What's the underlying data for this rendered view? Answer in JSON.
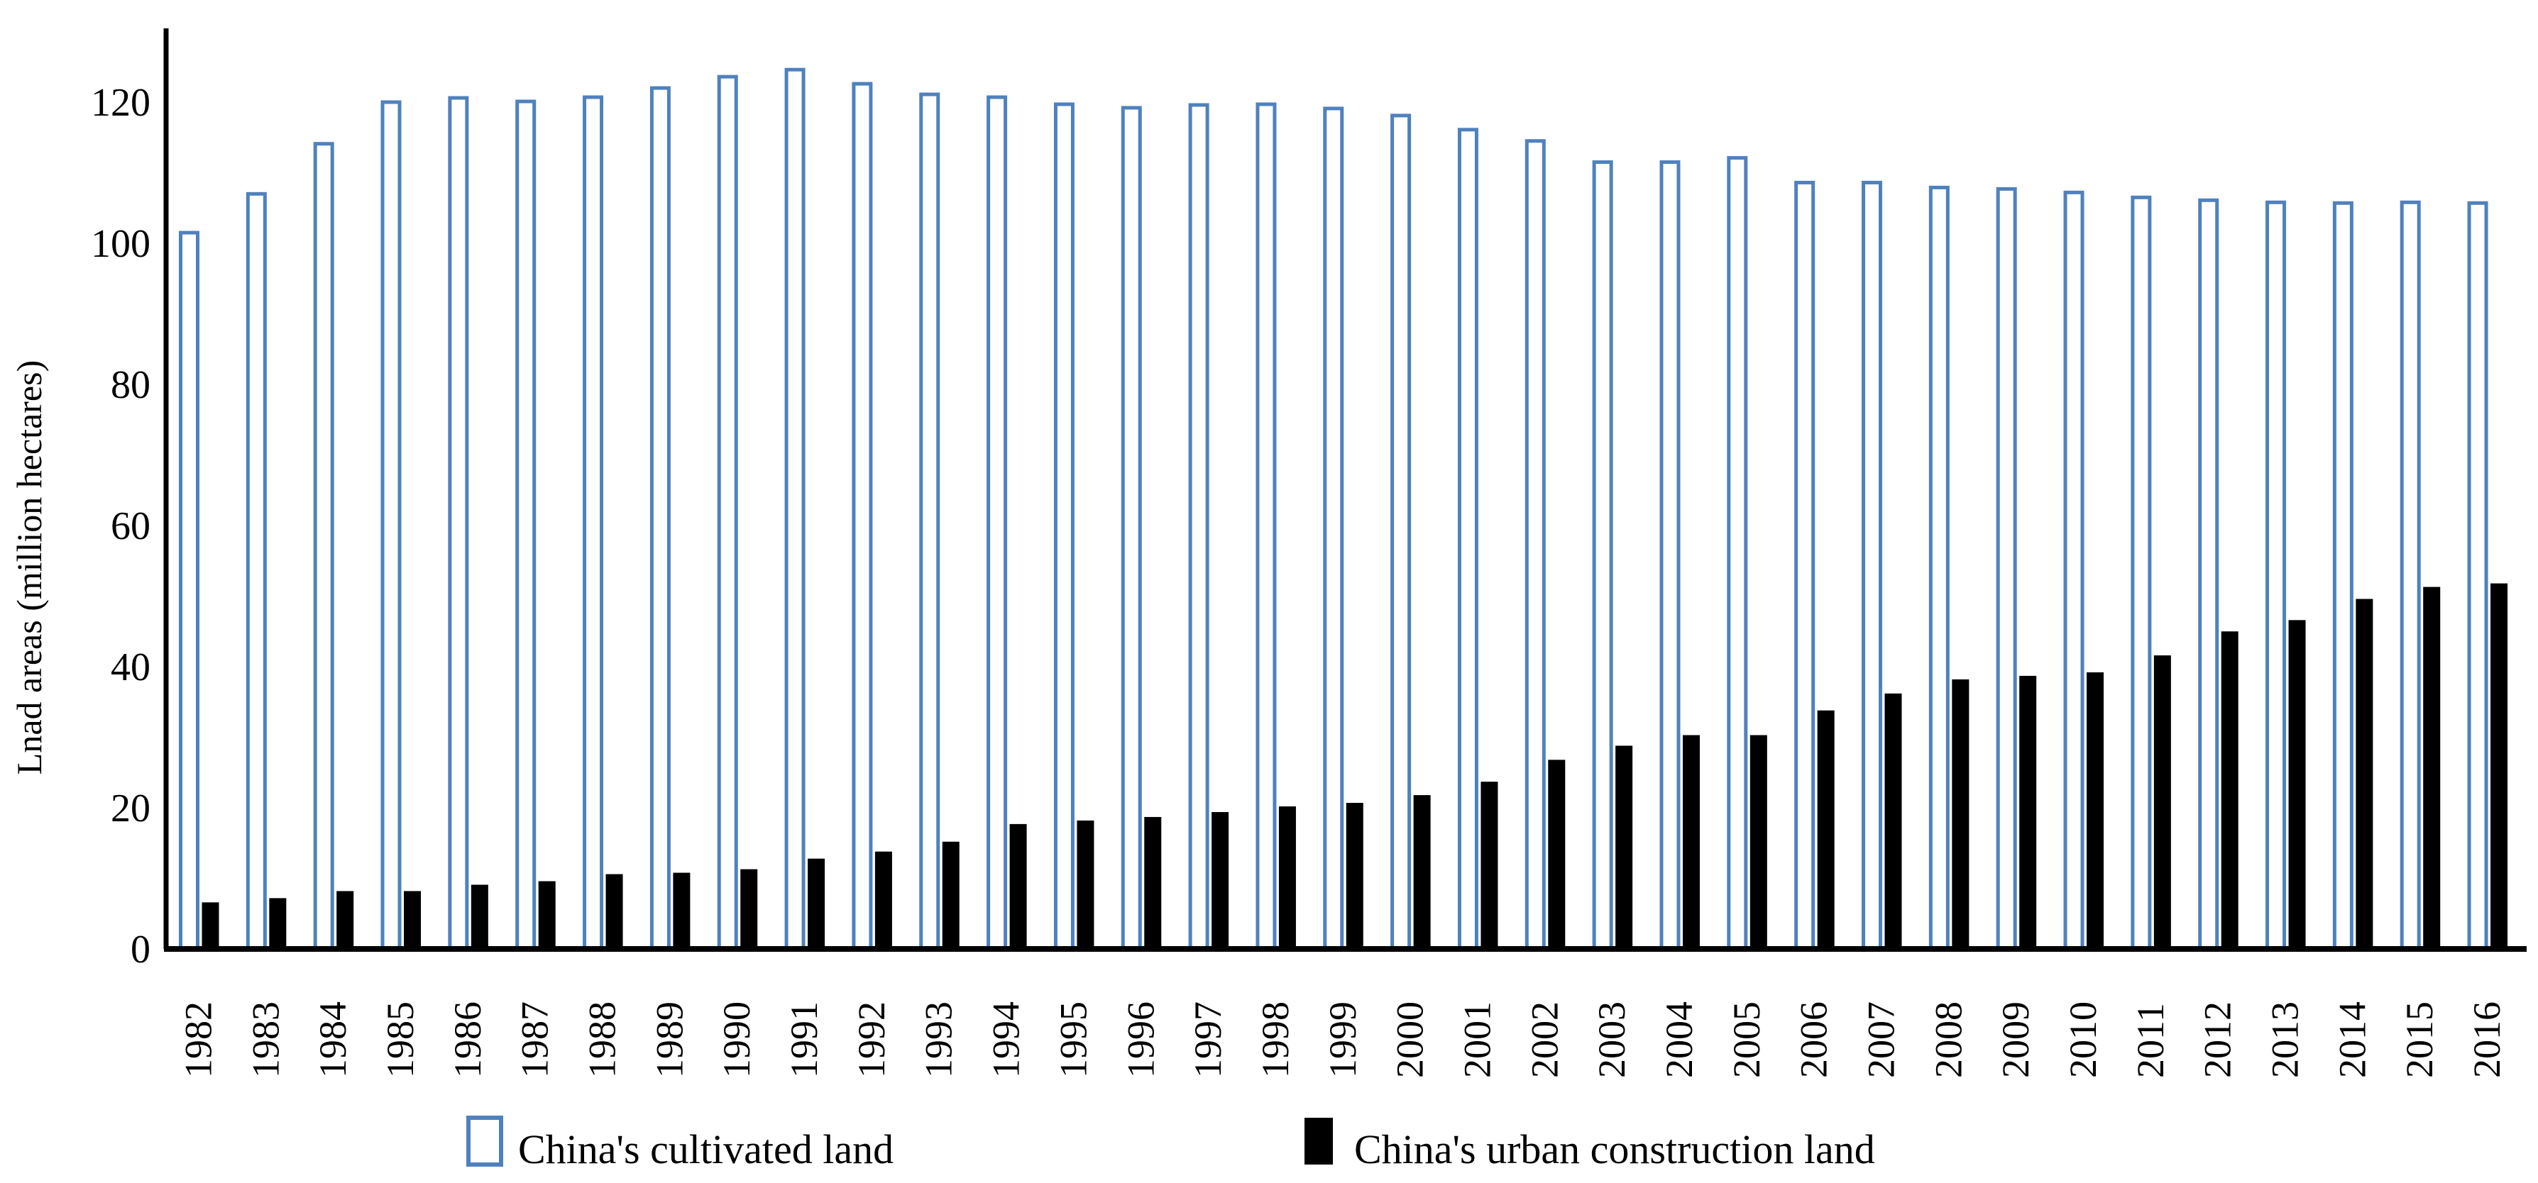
{
  "page": {
    "background": "#ffffff"
  },
  "chart_data": {
    "type": "bar",
    "title": "",
    "xlabel": "",
    "ylabel": "Lnad areas (million hectares)",
    "ylim": [
      0,
      130
    ],
    "yticks": [
      0,
      20,
      40,
      60,
      80,
      100,
      120
    ],
    "grid": false,
    "legend_position": "bottom",
    "categories": [
      "1982",
      "1983",
      "1984",
      "1985",
      "1986",
      "1987",
      "1988",
      "1989",
      "1990",
      "1991",
      "1992",
      "1993",
      "1994",
      "1995",
      "1996",
      "1997",
      "1998",
      "1999",
      "2000",
      "2001",
      "2002",
      "2003",
      "2004",
      "2005",
      "2006",
      "2007",
      "2008",
      "2009",
      "2010",
      "2011",
      "2012",
      "2013",
      "2014",
      "2015",
      "2016"
    ],
    "series": [
      {
        "name": "China's cultivated land",
        "style": "outline",
        "color": "#4F81BD",
        "values": [
          101.5,
          107.0,
          114.1,
          120.0,
          120.6,
          120.1,
          120.7,
          122.0,
          123.6,
          124.6,
          122.6,
          121.1,
          120.7,
          119.7,
          119.2,
          119.6,
          119.7,
          119.1,
          118.1,
          116.1,
          114.5,
          111.5,
          111.5,
          112.1,
          108.6,
          108.6,
          107.9,
          107.7,
          107.2,
          106.5,
          106.1,
          105.8,
          105.7,
          105.8,
          105.7
        ]
      },
      {
        "name": "China's urban construction land",
        "style": "solid",
        "color": "#000000",
        "values": [
          6.6,
          7.2,
          8.2,
          8.2,
          9.1,
          9.6,
          10.6,
          10.8,
          11.3,
          12.8,
          13.8,
          15.2,
          17.7,
          18.2,
          18.7,
          19.4,
          20.2,
          20.7,
          21.8,
          23.7,
          26.8,
          28.8,
          30.3,
          30.3,
          33.8,
          36.2,
          38.2,
          38.7,
          39.2,
          41.6,
          45.0,
          46.6,
          49.6,
          51.3,
          51.8
        ]
      }
    ]
  }
}
